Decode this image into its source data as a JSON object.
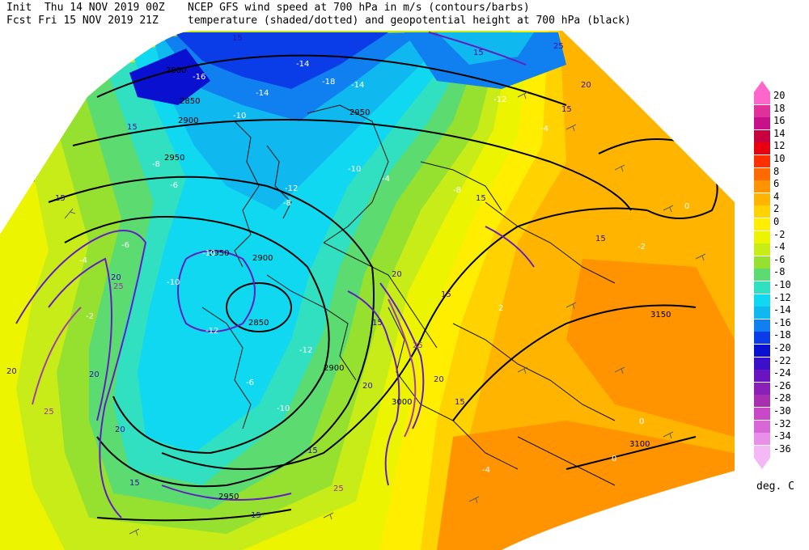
{
  "header": {
    "line1_left": "Init  Thu 14 NOV 2019 00Z",
    "line1_right": "NCEP GFS wind speed at 700 hPa in m/s (contours/barbs)",
    "line2_left": "Fcst Fri 15 NOV 2019 21Z",
    "line2_right": "temperature (shaded/dotted) and geopotential height at 700 hPa (black)"
  },
  "legend": {
    "unit_label": "deg. C",
    "levels": [
      {
        "label": "20",
        "color": "#ff66cc"
      },
      {
        "label": "18",
        "color": "#e0309a"
      },
      {
        "label": "16",
        "color": "#c8108a"
      },
      {
        "label": "14",
        "color": "#c80040"
      },
      {
        "label": "12",
        "color": "#e80010"
      },
      {
        "label": "10",
        "color": "#ff3000"
      },
      {
        "label": "8",
        "color": "#ff6a00"
      },
      {
        "label": "6",
        "color": "#ff9400"
      },
      {
        "label": "4",
        "color": "#ffb400"
      },
      {
        "label": "2",
        "color": "#ffd200"
      },
      {
        "label": "0",
        "color": "#ffee00"
      },
      {
        "label": "-2",
        "color": "#ecf400"
      },
      {
        "label": "-4",
        "color": "#c8ec18"
      },
      {
        "label": "-6",
        "color": "#96e030"
      },
      {
        "label": "-8",
        "color": "#5cdc70"
      },
      {
        "label": "-10",
        "color": "#30e0c0"
      },
      {
        "label": "-12",
        "color": "#10d8f0"
      },
      {
        "label": "-14",
        "color": "#10b8f0"
      },
      {
        "label": "-16",
        "color": "#1080f0"
      },
      {
        "label": "-18",
        "color": "#0a3ce8"
      },
      {
        "label": "-20",
        "color": "#0a10d0"
      },
      {
        "label": "-22",
        "color": "#3c10c8"
      },
      {
        "label": "-24",
        "color": "#6a14c0"
      },
      {
        "label": "-26",
        "color": "#8a20b8"
      },
      {
        "label": "-28",
        "color": "#a830b0"
      },
      {
        "label": "-30",
        "color": "#c848c8"
      },
      {
        "label": "-32",
        "color": "#d868d8"
      },
      {
        "label": "-34",
        "color": "#e890e8"
      },
      {
        "label": "-36",
        "color": "#f4b8f4"
      }
    ]
  },
  "map_labels": {
    "height": [
      "2800",
      "2850",
      "2900",
      "2950",
      "2850",
      "2900",
      "2950",
      "3000",
      "3100",
      "3150",
      "2950",
      "2900",
      "2950"
    ],
    "wind": [
      "15",
      "15",
      "15",
      "20",
      "25",
      "20",
      "20",
      "25",
      "15",
      "20",
      "15",
      "15",
      "20",
      "25",
      "15",
      "15",
      "20",
      "15",
      "20",
      "25",
      "15",
      "25",
      "20",
      "15",
      "15",
      "15"
    ],
    "temp": [
      "-16",
      "-14",
      "-18",
      "-14",
      "-12",
      "-10",
      "-8",
      "-6",
      "-4",
      "-2",
      "0",
      "-12",
      "-10",
      "-8",
      "-10",
      "-6",
      "-4",
      "-2",
      "-4",
      "-8",
      "-10",
      "-12",
      "-10",
      "-6",
      "0",
      "2",
      "0",
      "-4",
      "-12",
      "-14"
    ]
  }
}
